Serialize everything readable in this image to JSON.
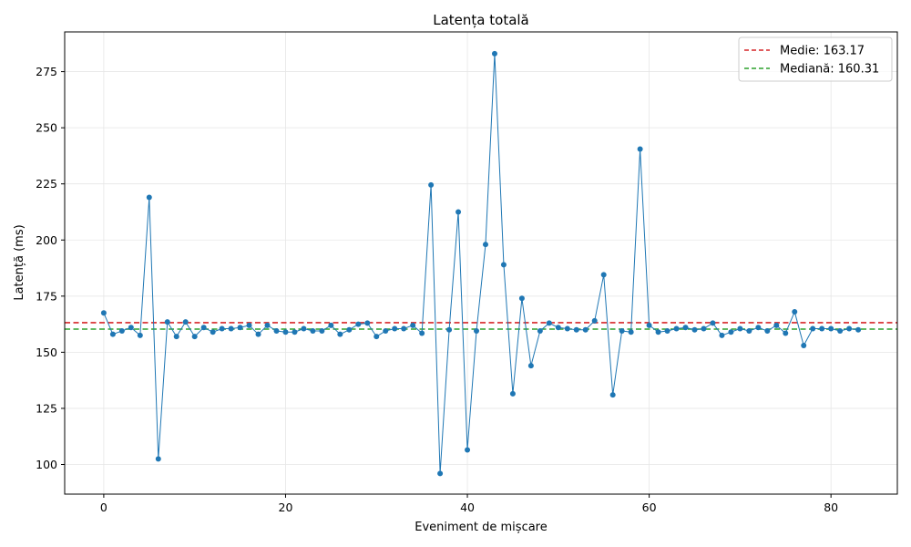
{
  "chart_data": {
    "type": "line",
    "title": "Latența totală",
    "xlabel": "Eveniment de mișcare",
    "ylabel": "Latență (ms)",
    "xlim": [
      -4.3,
      87.3
    ],
    "ylim": [
      86.8,
      292.7
    ],
    "xticks": [
      0,
      20,
      40,
      60,
      80
    ],
    "yticks": [
      100,
      125,
      150,
      175,
      200,
      225,
      250,
      275
    ],
    "grid": true,
    "legend_position": "top-right",
    "colors": {
      "series": "#1f77b4",
      "mean": "#d62728",
      "median": "#2ca02c"
    },
    "series": [
      {
        "values": [
          167.5,
          158.0,
          159.5,
          161.0,
          157.5,
          219.0,
          102.5,
          163.5,
          157.0,
          163.5,
          157.0,
          161.0,
          159.0,
          160.5,
          160.5,
          161.0,
          162.0,
          158.0,
          162.0,
          159.5,
          159.0,
          159.0,
          160.5,
          159.5,
          159.5,
          162.0,
          158.0,
          160.0,
          162.5,
          163.0,
          157.0,
          159.5,
          160.5,
          160.5,
          162.0,
          158.5,
          224.5,
          96.0,
          160.0,
          212.5,
          106.5,
          159.5,
          198.0,
          283.0,
          189.0,
          131.5,
          174.0,
          144.0,
          159.5,
          163.0,
          161.0,
          160.5,
          160.0,
          160.0,
          164.0,
          184.5,
          131.0,
          159.5,
          159.0,
          240.5,
          162.0,
          159.0,
          159.5,
          160.5,
          161.0,
          160.0,
          160.5,
          163.0,
          157.5,
          159.0,
          160.5,
          159.5,
          161.0,
          159.5,
          162.0,
          158.5,
          168.0,
          153.0,
          160.5,
          160.5,
          160.5,
          159.5,
          160.5,
          160.0
        ]
      }
    ],
    "reference_lines": [
      {
        "label": "Medie: 163.17",
        "value": 163.17,
        "style": "dashed",
        "color": "#d62728"
      },
      {
        "label": "Mediană: 160.31",
        "value": 160.31,
        "style": "dashed",
        "color": "#2ca02c"
      }
    ]
  }
}
